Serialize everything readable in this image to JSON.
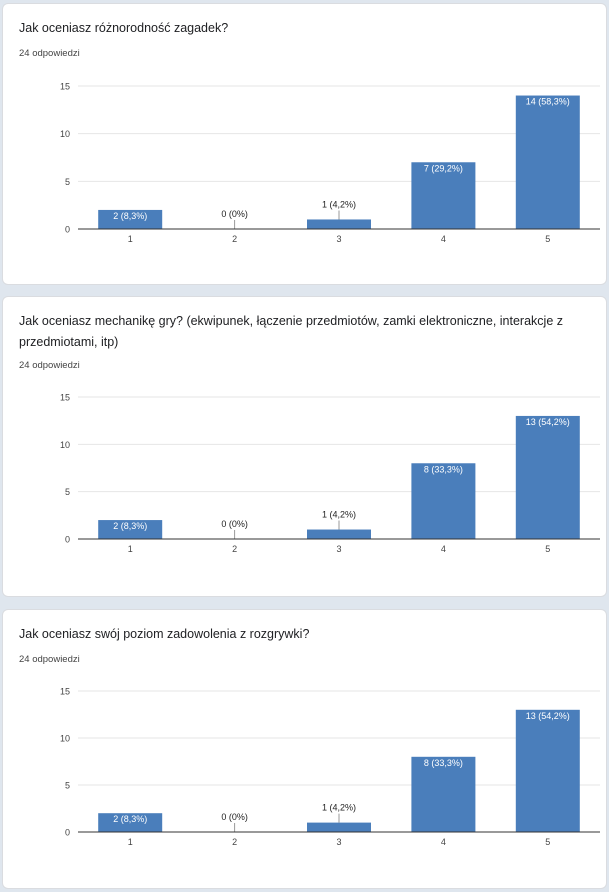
{
  "colors": {
    "bar": "#4a7ebb",
    "grid": "#e6e6e6",
    "axis": "#333333",
    "label_inside": "#ffffff",
    "label_outside": "#222222"
  },
  "charts": [
    {
      "title": "Jak oceniasz różnorodność zagadek?",
      "responses": "24 odpowiedzi",
      "chart_data": {
        "type": "bar",
        "categories": [
          "1",
          "2",
          "3",
          "4",
          "5"
        ],
        "values": [
          2,
          0,
          1,
          7,
          14
        ],
        "data_labels": [
          "2 (8,3%)",
          "0 (0%)",
          "1 (4,2%)",
          "7 (29,2%)",
          "14 (58,3%)"
        ],
        "ylim": [
          0,
          15
        ],
        "yticks": [
          "0",
          "5",
          "10",
          "15"
        ],
        "grid": true
      }
    },
    {
      "title": "Jak oceniasz mechanikę gry? (ekwipunek, łączenie przedmiotów, zamki elektroniczne, interakcje z przedmiotami, itp)",
      "responses": "24 odpowiedzi",
      "chart_data": {
        "type": "bar",
        "categories": [
          "1",
          "2",
          "3",
          "4",
          "5"
        ],
        "values": [
          2,
          0,
          1,
          8,
          13
        ],
        "data_labels": [
          "2 (8,3%)",
          "0 (0%)",
          "1 (4,2%)",
          "8 (33,3%)",
          "13 (54,2%)"
        ],
        "ylim": [
          0,
          15
        ],
        "yticks": [
          "0",
          "5",
          "10",
          "15"
        ],
        "grid": true
      }
    },
    {
      "title": "Jak oceniasz swój poziom zadowolenia z rozgrywki?",
      "responses": "24 odpowiedzi",
      "chart_data": {
        "type": "bar",
        "categories": [
          "1",
          "2",
          "3",
          "4",
          "5"
        ],
        "values": [
          2,
          0,
          1,
          8,
          13
        ],
        "data_labels": [
          "2 (8,3%)",
          "0 (0%)",
          "1 (4,2%)",
          "8 (33,3%)",
          "13 (54,2%)"
        ],
        "ylim": [
          0,
          15
        ],
        "yticks": [
          "0",
          "5",
          "10",
          "15"
        ],
        "grid": true
      }
    }
  ]
}
